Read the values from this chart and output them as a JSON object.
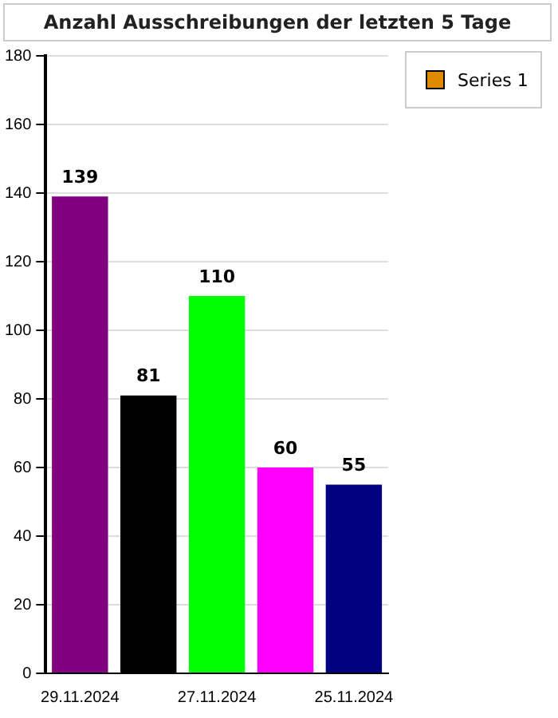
{
  "chart_data": {
    "type": "bar",
    "title": "Anzahl Ausschreibungen der letzten 5 Tage",
    "categories": [
      "29.11.2024",
      null,
      "27.11.2024",
      null,
      "25.11.2024"
    ],
    "series": [
      {
        "name": "Series 1",
        "color": "#e08a00",
        "colors": [
          "#800080",
          "#000000",
          "#00ff00",
          "#ff00ff",
          "#000080"
        ],
        "values": [
          139,
          81,
          110,
          60,
          55
        ]
      }
    ],
    "ylim": [
      0,
      180
    ],
    "yticks": [
      0,
      20,
      40,
      60,
      80,
      100,
      120,
      140,
      160,
      180
    ],
    "grid": "y",
    "legend": "top right",
    "data_labels": true
  }
}
